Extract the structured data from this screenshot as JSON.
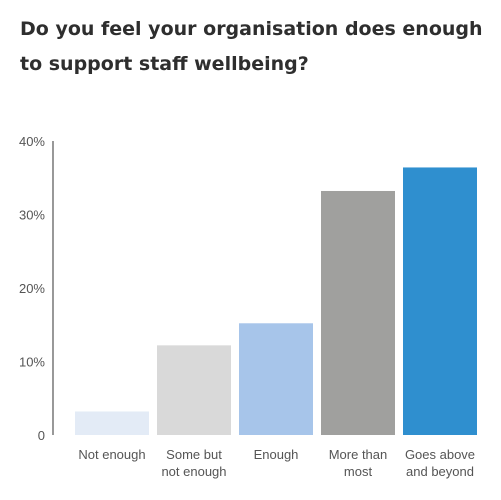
{
  "chart_data": {
    "type": "bar",
    "title": "Do you feel your organisation does enough to support staff wellbeing?",
    "categories": [
      [
        "Not enough"
      ],
      [
        "Some but",
        "not enough"
      ],
      [
        "Enough"
      ],
      [
        "More than",
        "most"
      ],
      [
        "Goes above",
        "and beyond"
      ]
    ],
    "values": [
      3.2,
      12.2,
      15.2,
      33.2,
      36.4
    ],
    "colors": [
      "#e3ebf6",
      "#d9d9d9",
      "#a7c5ea",
      "#a0a09e",
      "#2f8fcf"
    ],
    "yticks": [
      {
        "value": 0,
        "label": "0"
      },
      {
        "value": 10,
        "label": "10%"
      },
      {
        "value": 20,
        "label": "20%"
      },
      {
        "value": 30,
        "label": "30%"
      },
      {
        "value": 40,
        "label": "40%"
      }
    ],
    "ylim": [
      0,
      40
    ],
    "xlabel": "",
    "ylabel": "",
    "grid": false,
    "legend": "none"
  }
}
